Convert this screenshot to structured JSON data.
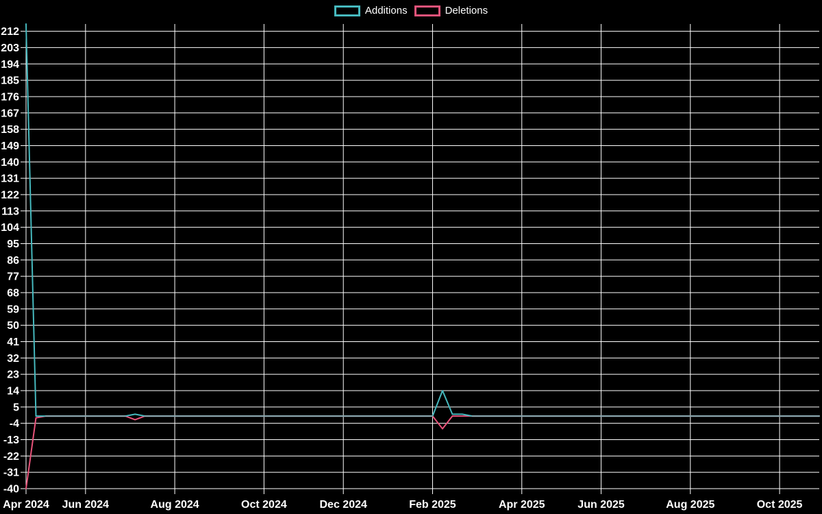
{
  "page": {
    "background": "#000000",
    "text_color": "#ffffff",
    "grid_color": "#ffffff"
  },
  "legend": {
    "position": "top-center",
    "items": [
      {
        "label": "Additions",
        "color": "#46b9be"
      },
      {
        "label": "Deletions",
        "color": "#e8537a"
      }
    ]
  },
  "chart_data": {
    "type": "line",
    "title": "",
    "xlabel": "",
    "ylabel": "",
    "x_start": "2024-04-21",
    "x_end": "2025-11-02",
    "interval_days": 7,
    "x_axis": {
      "ticks": [
        {
          "date": "2024-04-21",
          "label": "Apr 2024"
        },
        {
          "date": "2024-06-02",
          "label": "Jun 2024"
        },
        {
          "date": "2024-08-04",
          "label": "Aug 2024"
        },
        {
          "date": "2024-10-06",
          "label": "Oct 2024"
        },
        {
          "date": "2024-12-01",
          "label": "Dec 2024"
        },
        {
          "date": "2025-02-02",
          "label": "Feb 2025"
        },
        {
          "date": "2025-04-06",
          "label": "Apr 2025"
        },
        {
          "date": "2025-06-01",
          "label": "Jun 2025"
        },
        {
          "date": "2025-08-03",
          "label": "Aug 2025"
        },
        {
          "date": "2025-10-05",
          "label": "Oct 2025"
        }
      ]
    },
    "y_axis": {
      "min": -40,
      "max": 216,
      "tick_step": 9,
      "ticks": [
        212,
        203,
        194,
        185,
        176,
        167,
        158,
        149,
        140,
        131,
        122,
        113,
        104,
        95,
        86,
        77,
        68,
        59,
        50,
        41,
        32,
        23,
        14,
        5,
        -4,
        -13,
        -22,
        -31,
        -40
      ]
    },
    "series": [
      {
        "name": "Additions",
        "color": "#46b9be",
        "default_value": 0,
        "nonzero_points": [
          {
            "date": "2024-04-21",
            "value": 216
          },
          {
            "date": "2024-07-07",
            "value": 1
          },
          {
            "date": "2025-02-09",
            "value": 14
          },
          {
            "date": "2025-02-16",
            "value": 1
          },
          {
            "date": "2025-02-23",
            "value": 1
          }
        ]
      },
      {
        "name": "Deletions",
        "color": "#e8537a",
        "default_value": 0,
        "nonzero_points": [
          {
            "date": "2024-04-21",
            "value": -40
          },
          {
            "date": "2024-04-28",
            "value": -1
          },
          {
            "date": "2024-07-07",
            "value": -2
          },
          {
            "date": "2025-02-09",
            "value": -7
          }
        ]
      }
    ],
    "overlap_line_color": "#8ca6ae",
    "grid_on": true
  }
}
